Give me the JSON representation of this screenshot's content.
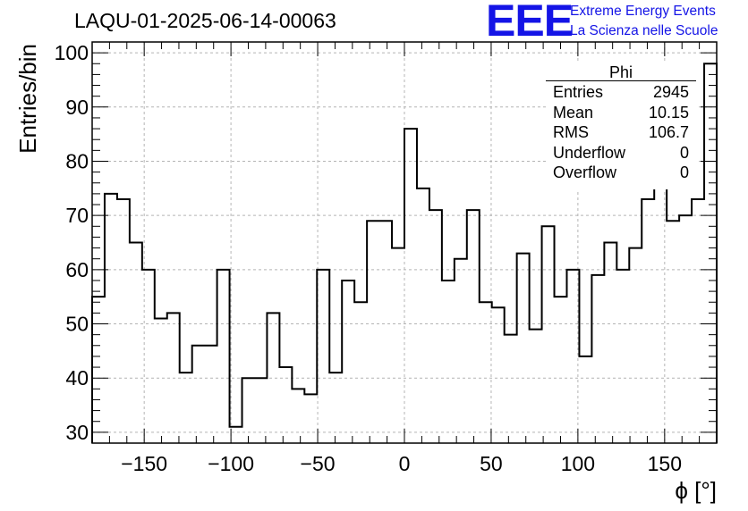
{
  "chart_data": {
    "type": "histogram",
    "title": "LAQU-01-2025-06-14-00063",
    "xlabel": "ϕ [°]",
    "ylabel": "Entries/bin",
    "xlim": [
      -180,
      180
    ],
    "ylim": [
      28,
      102
    ],
    "x_ticks": [
      -150,
      -100,
      -50,
      0,
      50,
      100,
      150
    ],
    "x_tick_labels": [
      "−150",
      "−100",
      "−50",
      "0",
      "50",
      "100",
      "150"
    ],
    "y_ticks": [
      30,
      40,
      50,
      60,
      70,
      80,
      90,
      100
    ],
    "grid": true,
    "bin_width": 7.2,
    "bin_low_edge": -180,
    "values": [
      55,
      74,
      73,
      65,
      60,
      51,
      52,
      41,
      46,
      46,
      60,
      31,
      40,
      40,
      52,
      42,
      38,
      37,
      60,
      41,
      58,
      54,
      69,
      69,
      64,
      86,
      75,
      71,
      58,
      62,
      71,
      54,
      53,
      48,
      63,
      49,
      68,
      55,
      60,
      44,
      59,
      65,
      60,
      64,
      73,
      79,
      69,
      70,
      73,
      98
    ],
    "stats": {
      "name": "Phi",
      "rows": [
        {
          "label": "Entries",
          "value": "2945"
        },
        {
          "label": "Mean",
          "value": "10.15"
        },
        {
          "label": "RMS",
          "value": "106.7"
        },
        {
          "label": "Underflow",
          "value": "0"
        },
        {
          "label": "Overflow",
          "value": "0"
        }
      ]
    }
  },
  "logo": {
    "mark": "EEE",
    "line1": "Extreme Energy Events",
    "line2": "La Scienza nelle Scuole",
    "color": "#1414e6"
  }
}
